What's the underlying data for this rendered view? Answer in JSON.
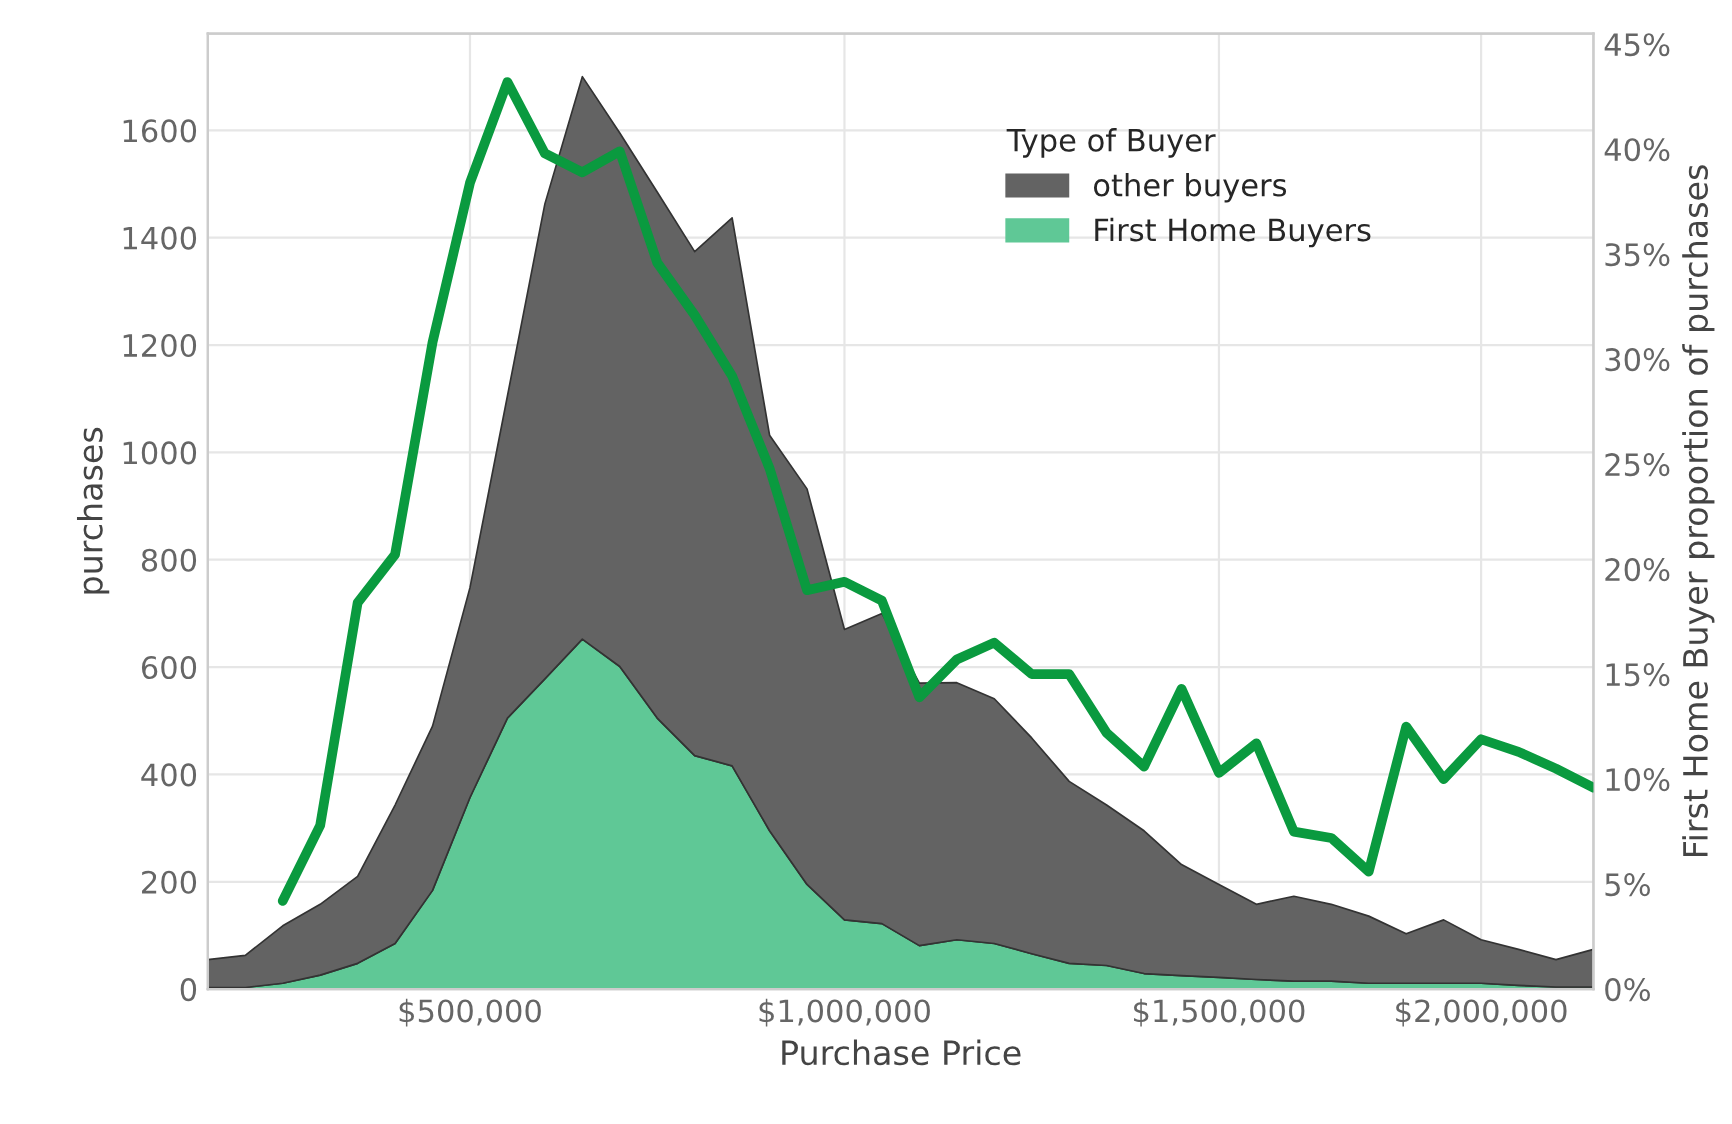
{
  "chart_data": {
    "type": "area",
    "stacked": true,
    "xlabel": "Purchase Price",
    "ylabel": "purchases",
    "y2label": "First Home Buyer proportion of purchases",
    "legend_title": "Type of Buyer",
    "legend": "top right",
    "grid": true,
    "categories": [
      null,
      null,
      null,
      null,
      null,
      null,
      null,
      "$500,000",
      null,
      null,
      null,
      null,
      null,
      null,
      null,
      null,
      null,
      "$1,000,000",
      null,
      null,
      null,
      null,
      null,
      null,
      null,
      null,
      null,
      "$1,500,000",
      null,
      null,
      null,
      null,
      null,
      null,
      "$2,000,000",
      null,
      null,
      null
    ],
    "ylim": [
      0,
      1780
    ],
    "yticks": [
      0,
      200,
      400,
      600,
      800,
      1000,
      1200,
      1400,
      1600
    ],
    "y2lim": [
      0,
      45.5
    ],
    "y2ticks": [
      {
        "value": 0,
        "label": "0%"
      },
      {
        "value": 5,
        "label": "5%"
      },
      {
        "value": 10,
        "label": "10%"
      },
      {
        "value": 15,
        "label": "15%"
      },
      {
        "value": 20,
        "label": "20%"
      },
      {
        "value": 25,
        "label": "25%"
      },
      {
        "value": 30,
        "label": "30%"
      },
      {
        "value": 35,
        "label": "35%"
      },
      {
        "value": 40,
        "label": "40%"
      },
      {
        "value": 45,
        "label": "45%"
      }
    ],
    "series": [
      {
        "name": "First Home Buyers",
        "color": "#5fc896",
        "values": [
          3,
          3,
          11,
          26,
          48,
          85,
          184,
          357,
          505,
          578,
          652,
          601,
          505,
          435,
          416,
          295,
          195,
          129,
          122,
          81,
          92,
          85,
          66,
          48,
          44,
          29,
          25,
          22,
          18,
          15,
          15,
          11,
          11,
          11,
          11,
          7,
          4,
          4
        ]
      },
      {
        "name": "other buyers",
        "color": "#636363",
        "values": [
          52,
          60,
          107,
          132,
          162,
          258,
          306,
          391,
          600,
          885,
          1048,
          994,
          980,
          939,
          1021,
          737,
          737,
          541,
          578,
          489,
          479,
          456,
          402,
          339,
          299,
          266,
          207,
          173,
          140,
          158,
          143,
          125,
          92,
          118,
          81,
          67,
          51,
          70
        ]
      },
      {
        "type": "line",
        "axis": "y2",
        "color": "#0a9a3f",
        "values": [
          null,
          null,
          4.2,
          7.8,
          18.4,
          20.7,
          30.8,
          38.4,
          43.2,
          39.8,
          38.9,
          39.9,
          34.6,
          32.1,
          29.2,
          24.8,
          19.0,
          19.4,
          18.5,
          13.9,
          15.7,
          16.5,
          15.0,
          15.0,
          12.2,
          10.6,
          14.3,
          10.3,
          11.7,
          7.5,
          7.2,
          5.6,
          12.5,
          10.0,
          11.9,
          11.3,
          10.5,
          9.6
        ]
      }
    ]
  }
}
